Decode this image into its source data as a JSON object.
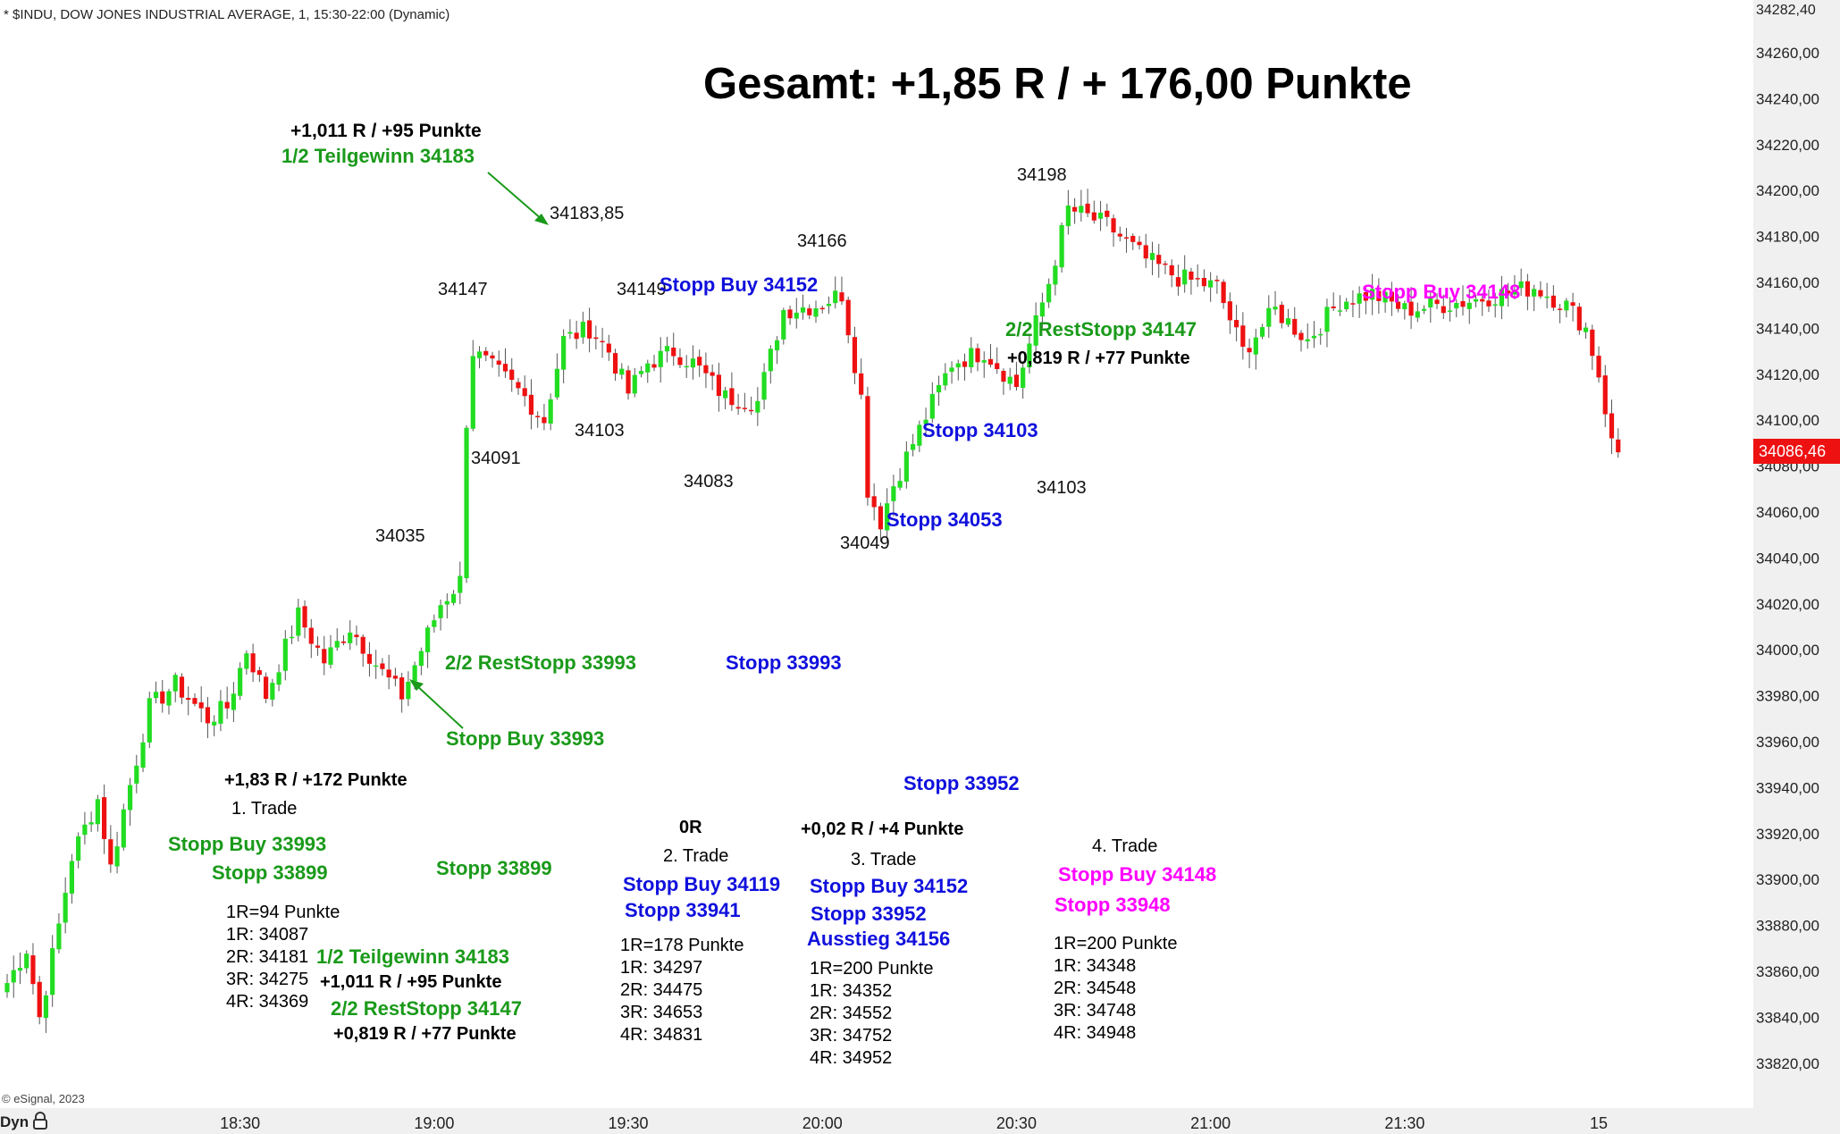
{
  "header": {
    "title": "* $INDU, DOW JONES INDUSTRIAL AVERAGE, 1, 15:30-22:00 (Dynamic)",
    "copyright": "© eSignal, 2023",
    "dyn_label": "Dyn",
    "lock_icon": "lock-icon"
  },
  "colors": {
    "up": "#22dd22",
    "down": "#ee1111",
    "annotation_green": "#1a9a1a",
    "annotation_blue": "#1010dd",
    "annotation_magenta": "#ff00ff",
    "last_price_bg": "#ee1111"
  },
  "summary": "Gesamt: +1,85 R / + 176,00 Punkte",
  "chart_data": {
    "type": "candlestick",
    "title": "",
    "ylim": [
      33810,
      34285
    ],
    "y_ticks": [
      "34260,00",
      "34240,00",
      "34220,00",
      "34200,00",
      "34180,00",
      "34160,00",
      "34140,00",
      "34120,00",
      "34100,00",
      "34080,00",
      "34060,00",
      "34040,00",
      "34020,00",
      "34000,00",
      "33980,00",
      "33960,00",
      "33940,00",
      "33920,00",
      "33900,00",
      "33880,00",
      "33860,00",
      "33840,00",
      "33820,00"
    ],
    "y_tick_values": [
      34260,
      34240,
      34220,
      34200,
      34180,
      34160,
      34140,
      34120,
      34100,
      34080,
      34060,
      34040,
      34020,
      34000,
      33980,
      33960,
      33940,
      33920,
      33900,
      33880,
      33860,
      33840,
      33820
    ],
    "top_label": "34282,40",
    "last_price": "34086,46",
    "last_price_value": 34086.46,
    "x_ticks": [
      "18:30",
      "19:00",
      "19:30",
      "20:00",
      "20:30",
      "21:00",
      "21:30",
      "15"
    ],
    "x_tick_bar_index": [
      36,
      66,
      96,
      126,
      156,
      186,
      216,
      246
    ],
    "anchors": [
      [
        0,
        33855
      ],
      [
        3,
        33870
      ],
      [
        5,
        33840
      ],
      [
        8,
        33880
      ],
      [
        10,
        33910
      ],
      [
        14,
        33935
      ],
      [
        16,
        33905
      ],
      [
        18,
        33930
      ],
      [
        22,
        33975
      ],
      [
        26,
        33985
      ],
      [
        31,
        33970
      ],
      [
        34,
        33975
      ],
      [
        37,
        34000
      ],
      [
        40,
        33980
      ],
      [
        45,
        34015
      ],
      [
        49,
        33995
      ],
      [
        53,
        34010
      ],
      [
        58,
        33990
      ],
      [
        61,
        33980
      ],
      [
        64,
        34000
      ],
      [
        67,
        34020
      ],
      [
        70,
        34030
      ],
      [
        71,
        34100
      ],
      [
        72,
        34130
      ],
      [
        74,
        34125
      ],
      [
        77,
        34118
      ],
      [
        80,
        34110
      ],
      [
        83,
        34100
      ],
      [
        86,
        34135
      ],
      [
        90,
        34140
      ],
      [
        93,
        34130
      ],
      [
        96,
        34112
      ],
      [
        99,
        34125
      ],
      [
        103,
        34130
      ],
      [
        106,
        34125
      ],
      [
        111,
        34110
      ],
      [
        116,
        34108
      ],
      [
        120,
        34148
      ],
      [
        125,
        34150
      ],
      [
        129,
        34155
      ],
      [
        132,
        34110
      ],
      [
        133,
        34070
      ],
      [
        135,
        34056
      ],
      [
        137,
        34072
      ],
      [
        140,
        34090
      ],
      [
        146,
        34125
      ],
      [
        151,
        34130
      ],
      [
        156,
        34115
      ],
      [
        161,
        34160
      ],
      [
        164,
        34192
      ],
      [
        170,
        34185
      ],
      [
        176,
        34170
      ],
      [
        181,
        34162
      ],
      [
        187,
        34158
      ],
      [
        191,
        34130
      ],
      [
        196,
        34148
      ],
      [
        201,
        34135
      ],
      [
        206,
        34152
      ],
      [
        211,
        34155
      ],
      [
        216,
        34148
      ],
      [
        221,
        34150
      ],
      [
        226,
        34152
      ],
      [
        231,
        34155
      ],
      [
        236,
        34158
      ],
      [
        241,
        34150
      ],
      [
        244,
        34140
      ],
      [
        246,
        34120
      ],
      [
        248,
        34090
      ],
      [
        249,
        34086
      ]
    ],
    "labels": [
      {
        "text": "34183,85",
        "value": 34183.85
      },
      {
        "text": "34147",
        "value": 34147
      },
      {
        "text": "34149",
        "value": 34149
      },
      {
        "text": "34166",
        "value": 34166
      },
      {
        "text": "34198",
        "value": 34198
      },
      {
        "text": "34091",
        "value": 34091
      },
      {
        "text": "34103",
        "value": 34103
      },
      {
        "text": "34083",
        "value": 34083
      },
      {
        "text": "34049",
        "value": 34049
      },
      {
        "text": "34103",
        "value": 34103
      },
      {
        "text": "34035",
        "value": 34035
      }
    ]
  },
  "annotations": {
    "t1_r": "+1,011 R / +95 Punkte",
    "t1_tg": "1/2 Teilgewinn 34183",
    "rest_stopp_33993": "2/2 RestStopp 33993",
    "stopp_buy_33993": "Stopp Buy 33993",
    "stopp_buy_34152_top": "Stopp Buy 34152",
    "stopp_33993_blue": "Stopp 33993",
    "stopp_34103": "Stopp 34103",
    "stopp_34053": "Stopp 34053",
    "rest_stopp_34147": "2/2 RestStopp 34147",
    "r_0819_top": "+0,819 R / +77 Punkte",
    "stopp_buy_34148_top": "Stopp Buy 34148",
    "stopp_33952_top": "Stopp 33952",
    "trade1": {
      "result": "+1,83 R / +172 Punkte",
      "name": "1. Trade",
      "stopp_buy": "Stopp Buy 33993",
      "stopp": "Stopp 33899",
      "stopp_2": "Stopp 33899",
      "r_def": "1R=94 Punkte",
      "r1": "1R: 34087",
      "r2": "2R: 34181",
      "r3": "3R: 34275",
      "r4": "4R: 34369",
      "tg": "1/2 Teilgewinn 34183",
      "tg_r": "+1,011 R / +95 Punkte",
      "rest": "2/2 RestStopp 34147",
      "rest_r": "+0,819 R / +77 Punkte"
    },
    "trade2": {
      "result": "0R",
      "name": "2. Trade",
      "stopp_buy": "Stopp Buy 34119",
      "stopp": "Stopp 33941",
      "r_def": "1R=178 Punkte",
      "r1": "1R: 34297",
      "r2": "2R: 34475",
      "r3": "3R: 34653",
      "r4": "4R: 34831"
    },
    "trade3": {
      "result": "+0,02 R / +4 Punkte",
      "name": "3. Trade",
      "stopp_buy": "Stopp Buy 34152",
      "stopp": "Stopp 33952",
      "exit": "Ausstieg 34156",
      "r_def": "1R=200 Punkte",
      "r1": "1R: 34352",
      "r2": "2R: 34552",
      "r3": "3R: 34752",
      "r4": "4R: 34952"
    },
    "trade4": {
      "name": "4. Trade",
      "stopp_buy": "Stopp Buy 34148",
      "stopp": "Stopp 33948",
      "r_def": "1R=200 Punkte",
      "r1": "1R: 34348",
      "r2": "2R: 34548",
      "r3": "3R: 34748",
      "r4": "4R: 34948"
    }
  }
}
